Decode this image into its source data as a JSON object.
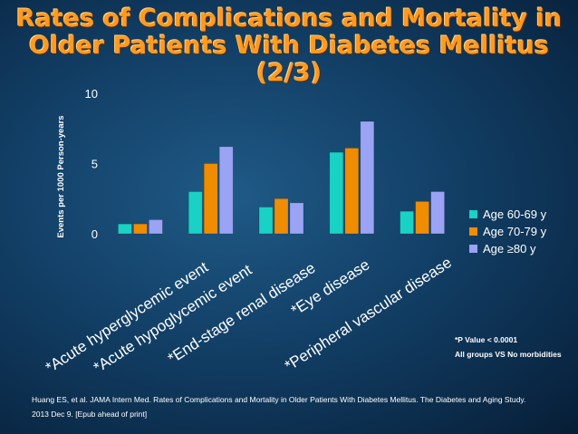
{
  "title": {
    "line1": "Rates of Complications and Mortality in",
    "line2": "Older Patients With Diabetes Mellitus",
    "line3": "(2/3)"
  },
  "chart_data": {
    "type": "bar",
    "title": "Rates of Complications and Mortality in Older Patients With Diabetes Mellitus (2/3)",
    "ylabel": "Events per 1000 Person-years",
    "xlabel": "",
    "ylim": [
      0,
      10
    ],
    "yticks": [
      "0",
      "5",
      "10"
    ],
    "categories": [
      "*Acute hyperglycemic event",
      "*Acute hypoglycemic event",
      "*End-stage renal disease",
      "*Eye disease",
      "*Peripheral vascular disease"
    ],
    "series": [
      {
        "name": "Age 60-69 y",
        "color": "#19d1c4",
        "values": [
          0.7,
          3.0,
          1.9,
          5.8,
          1.6
        ]
      },
      {
        "name": "Age 70-79 y",
        "color": "#f08c00",
        "values": [
          0.7,
          5.0,
          2.5,
          6.1,
          2.3
        ]
      },
      {
        "name": "Age ≥80 y",
        "color": "#9aa3f4",
        "values": [
          1.0,
          6.2,
          2.2,
          8.0,
          3.0
        ]
      }
    ],
    "legend_position": "right",
    "grid": false
  },
  "notes": {
    "p_value": "*P Value < 0.0001",
    "comparison": "All groups VS No morbidities"
  },
  "citation": {
    "line1": "Huang ES, et al. JAMA Intern Med. Rates of Complications and Mortality in Older Patients With Diabetes Mellitus. The Diabetes and Aging Study.",
    "line2": "2013 Dec 9. [Epub ahead of print]"
  }
}
